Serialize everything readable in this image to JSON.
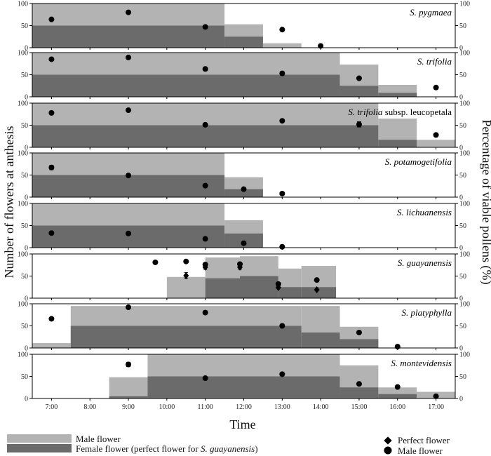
{
  "chart_data": {
    "type": "bar",
    "title": "",
    "xlabel": "Time",
    "ylabel_left": "Number of flowers at anthesis",
    "ylabel_right": "Percentage of viable pollens (%)",
    "ylim": [
      0,
      100
    ],
    "yticks": [
      0,
      50,
      100
    ],
    "x_ticks": [
      "7:00",
      "8:00",
      "9:00",
      "10:00",
      "11:00",
      "12:00",
      "13:00",
      "14:00",
      "15:00",
      "16:00",
      "17:00"
    ],
    "xlim": [
      6.5,
      17.5
    ],
    "colors": {
      "male_bar": "#b3b3b3",
      "female_bar": "#6b6b6b",
      "marker": "#000000",
      "frame": "#000000"
    },
    "panels": [
      {
        "species": "S. pygmaea",
        "species_suffix": "",
        "bars": [
          {
            "x0": 6.5,
            "x1": 11.5,
            "male": 100,
            "female": 50
          },
          {
            "x0": 11.5,
            "x1": 12.5,
            "male": 53,
            "female": 25
          },
          {
            "x0": 12.5,
            "x1": 13.5,
            "male": 10,
            "female": 0
          }
        ],
        "male_points": [
          {
            "x": 7.0,
            "y": 64,
            "err": 3
          },
          {
            "x": 9.0,
            "y": 80,
            "err": 2
          },
          {
            "x": 11.0,
            "y": 47,
            "err": 2
          },
          {
            "x": 13.0,
            "y": 41,
            "err": 3
          },
          {
            "x": 14.0,
            "y": 4,
            "err": 0
          }
        ],
        "perfect_points": []
      },
      {
        "species": "S. trifolia",
        "species_suffix": "",
        "bars": [
          {
            "x0": 6.5,
            "x1": 14.5,
            "male": 100,
            "female": 50
          },
          {
            "x0": 14.5,
            "x1": 15.5,
            "male": 73,
            "female": 25
          },
          {
            "x0": 15.5,
            "x1": 16.5,
            "male": 27,
            "female": 9
          }
        ],
        "male_points": [
          {
            "x": 7.0,
            "y": 85,
            "err": 2
          },
          {
            "x": 9.0,
            "y": 89,
            "err": 2
          },
          {
            "x": 11.0,
            "y": 63,
            "err": 4
          },
          {
            "x": 13.0,
            "y": 53,
            "err": 4
          },
          {
            "x": 15.0,
            "y": 42,
            "err": 2
          },
          {
            "x": 17.0,
            "y": 21,
            "err": 0
          }
        ],
        "perfect_points": []
      },
      {
        "species": "S. trifolia",
        "species_suffix": " subsp. leucopetala",
        "bars": [
          {
            "x0": 6.5,
            "x1": 15.5,
            "male": 100,
            "female": 50
          },
          {
            "x0": 15.5,
            "x1": 16.5,
            "male": 65,
            "female": 17
          },
          {
            "x0": 16.5,
            "x1": 17.5,
            "male": 17,
            "female": 0
          }
        ],
        "male_points": [
          {
            "x": 7.0,
            "y": 78,
            "err": 3
          },
          {
            "x": 9.0,
            "y": 84,
            "err": 2
          },
          {
            "x": 11.0,
            "y": 51,
            "err": 2
          },
          {
            "x": 13.0,
            "y": 60,
            "err": 2
          },
          {
            "x": 15.0,
            "y": 52,
            "err": 6
          },
          {
            "x": 17.0,
            "y": 28,
            "err": 0
          }
        ],
        "perfect_points": []
      },
      {
        "species": "S. potamogetifolia",
        "species_suffix": "",
        "bars": [
          {
            "x0": 6.5,
            "x1": 11.5,
            "male": 100,
            "female": 50
          },
          {
            "x0": 11.5,
            "x1": 12.5,
            "male": 45,
            "female": 18
          }
        ],
        "male_points": [
          {
            "x": 7.0,
            "y": 67,
            "err": 5
          },
          {
            "x": 9.0,
            "y": 49,
            "err": 2
          },
          {
            "x": 11.0,
            "y": 26,
            "err": 2
          },
          {
            "x": 12.0,
            "y": 18,
            "err": 0
          },
          {
            "x": 13.0,
            "y": 8,
            "err": 0
          }
        ],
        "perfect_points": []
      },
      {
        "species": "S. lichuanensis",
        "species_suffix": "",
        "bars": [
          {
            "x0": 6.5,
            "x1": 11.5,
            "male": 100,
            "female": 50
          },
          {
            "x0": 11.5,
            "x1": 12.5,
            "male": 62,
            "female": 32
          }
        ],
        "male_points": [
          {
            "x": 7.0,
            "y": 33,
            "err": 2
          },
          {
            "x": 9.0,
            "y": 32,
            "err": 2
          },
          {
            "x": 11.0,
            "y": 20,
            "err": 2
          },
          {
            "x": 12.0,
            "y": 10,
            "err": 0
          },
          {
            "x": 13.0,
            "y": 2,
            "err": 0
          }
        ],
        "perfect_points": []
      },
      {
        "species": "S. guayanensis",
        "species_suffix": "",
        "bars": [
          {
            "x0": 10.0,
            "x1": 11.0,
            "male": 48,
            "female": 0
          },
          {
            "x0": 11.0,
            "x1": 11.9,
            "male": 92,
            "female": 45
          },
          {
            "x0": 11.9,
            "x1": 12.9,
            "male": 95,
            "female": 50
          },
          {
            "x0": 12.9,
            "x1": 13.5,
            "male": 67,
            "female": 25
          },
          {
            "x0": 13.5,
            "x1": 14.4,
            "male": 73,
            "female": 25
          }
        ],
        "male_points": [
          {
            "x": 9.7,
            "y": 81,
            "err": 0
          },
          {
            "x": 10.5,
            "y": 83,
            "err": 3
          },
          {
            "x": 11.0,
            "y": 76,
            "err": 3
          },
          {
            "x": 11.9,
            "y": 77,
            "err": 3
          },
          {
            "x": 12.9,
            "y": 32,
            "err": 2
          },
          {
            "x": 13.9,
            "y": 41,
            "err": 2
          }
        ],
        "perfect_points": [
          {
            "x": 10.5,
            "y": 51,
            "err": 7
          },
          {
            "x": 11.0,
            "y": 70,
            "err": 5
          },
          {
            "x": 11.9,
            "y": 70,
            "err": 5
          },
          {
            "x": 12.9,
            "y": 24,
            "err": 2
          },
          {
            "x": 13.9,
            "y": 19,
            "err": 0
          }
        ]
      },
      {
        "species": "S. platyphylla",
        "species_suffix": "",
        "bars": [
          {
            "x0": 6.5,
            "x1": 7.5,
            "male": 11,
            "female": 0
          },
          {
            "x0": 7.5,
            "x1": 13.5,
            "male": 95,
            "female": 50
          },
          {
            "x0": 13.5,
            "x1": 14.5,
            "male": 95,
            "female": 35
          },
          {
            "x0": 14.5,
            "x1": 15.5,
            "male": 48,
            "female": 20
          }
        ],
        "male_points": [
          {
            "x": 7.0,
            "y": 66,
            "err": 3
          },
          {
            "x": 9.0,
            "y": 92,
            "err": 2
          },
          {
            "x": 11.0,
            "y": 80,
            "err": 4
          },
          {
            "x": 13.0,
            "y": 50,
            "err": 2
          },
          {
            "x": 15.0,
            "y": 35,
            "err": 2
          },
          {
            "x": 16.0,
            "y": 3,
            "err": 0
          }
        ],
        "perfect_points": []
      },
      {
        "species": "S. montevidensis",
        "species_suffix": "",
        "bars": [
          {
            "x0": 8.5,
            "x1": 9.5,
            "male": 48,
            "female": 5
          },
          {
            "x0": 9.5,
            "x1": 14.5,
            "male": 100,
            "female": 50
          },
          {
            "x0": 14.5,
            "x1": 15.5,
            "male": 75,
            "female": 25
          },
          {
            "x0": 15.5,
            "x1": 16.5,
            "male": 25,
            "female": 10
          },
          {
            "x0": 16.5,
            "x1": 17.5,
            "male": 15,
            "female": 0
          }
        ],
        "male_points": [
          {
            "x": 9.0,
            "y": 77,
            "err": 5
          },
          {
            "x": 11.0,
            "y": 46,
            "err": 2
          },
          {
            "x": 13.0,
            "y": 55,
            "err": 2
          },
          {
            "x": 15.0,
            "y": 33,
            "err": 4
          },
          {
            "x": 16.0,
            "y": 26,
            "err": 0
          },
          {
            "x": 17.0,
            "y": 5,
            "err": 0
          }
        ],
        "perfect_points": []
      }
    ],
    "legend": {
      "male_flower_bar": "Male flower",
      "female_flower_bar_prefix": "Female flower (perfect flower for ",
      "female_flower_bar_species": "S. guayanensis",
      "female_flower_bar_suffix": ")",
      "perfect_marker": "Perfect flower",
      "male_marker": "Male flower"
    }
  }
}
